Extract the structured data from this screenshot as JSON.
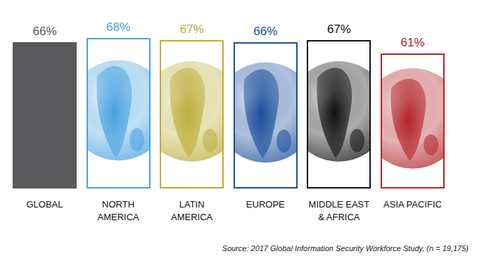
{
  "chart_data": {
    "type": "bar",
    "categories": [
      "GLOBAL",
      "NORTH AMERICA",
      "LATIN AMERICA",
      "EUROPE",
      "MIDDLE EAST & AFRICA",
      "ASIA PACIFIC"
    ],
    "values": [
      66,
      68,
      67,
      66,
      67,
      61
    ],
    "value_labels": [
      "66%",
      "68%",
      "67%",
      "66%",
      "67%",
      "61%"
    ],
    "colors": [
      "#5a5a5c",
      "#4aa3df",
      "#bcae3a",
      "#1b4f9c",
      "#111111",
      "#b3242a"
    ],
    "ylim": [
      0,
      80
    ],
    "yticks": [],
    "tick_labels": false,
    "data_labels": true,
    "grid": false,
    "source": "Source: 2017 Global Information Security Workforce Study, (n = 19,175)"
  }
}
